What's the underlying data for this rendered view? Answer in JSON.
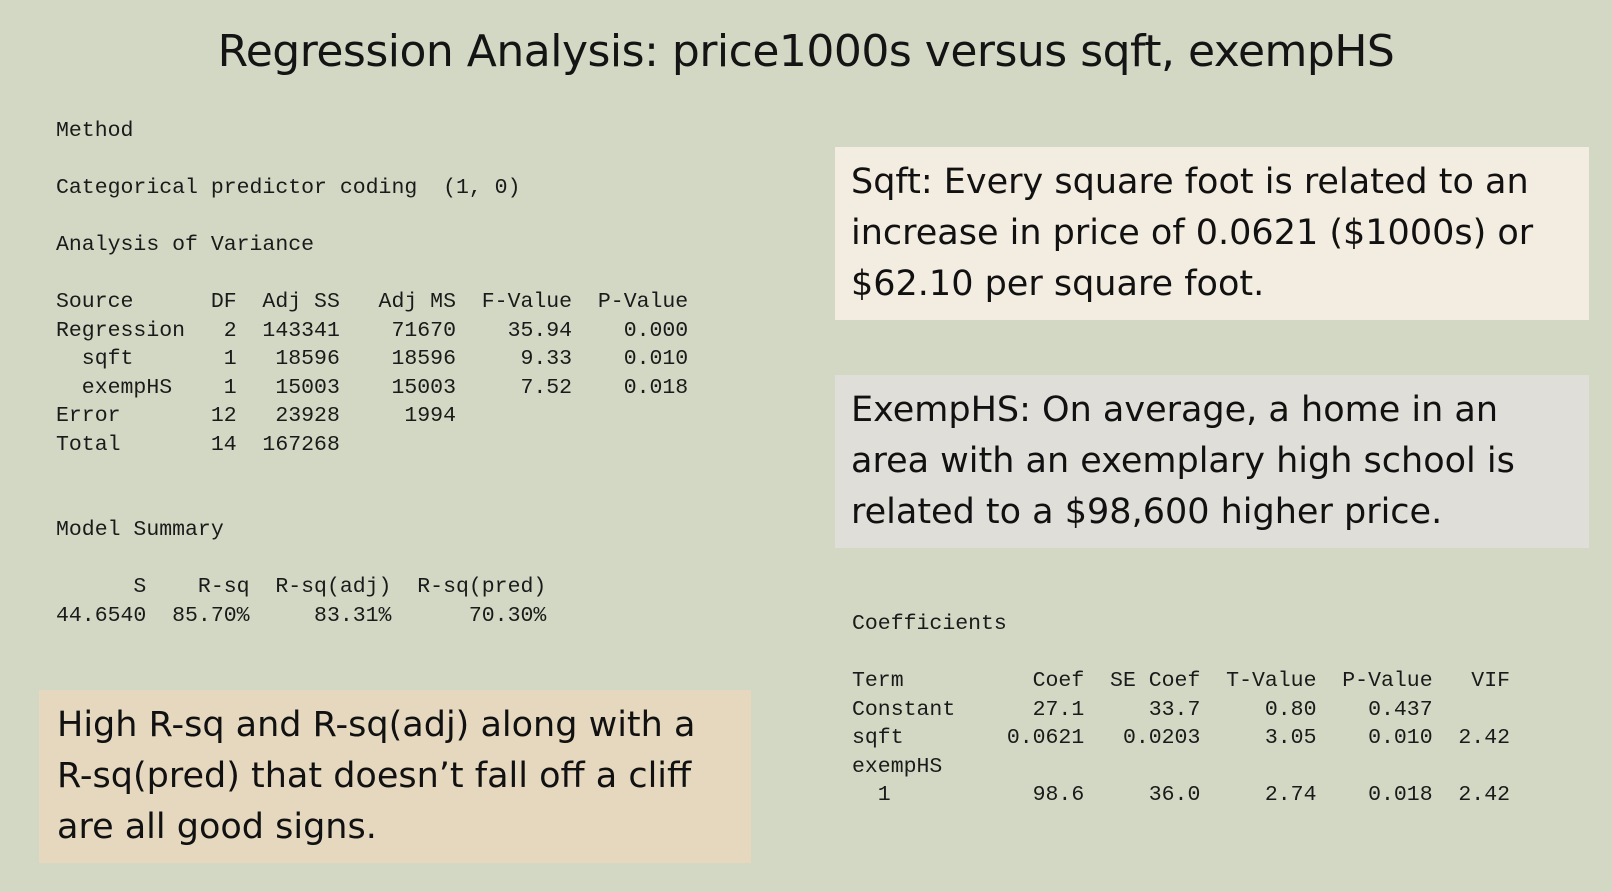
{
  "title": "Regression Analysis: price1000s versus sqft, exempHS",
  "method": {
    "heading": "Method",
    "line": "Categorical predictor coding  (1, 0)"
  },
  "anova": {
    "heading": "Analysis of Variance",
    "table": [
      "Source      DF  Adj SS   Adj MS  F-Value  P-Value",
      "Regression   2  143341    71670    35.94    0.000",
      "  sqft       1   18596    18596     9.33    0.010",
      "  exempHS    1   15003    15003     7.52    0.018",
      "Error       12   23928     1994",
      "Total       14  167268"
    ]
  },
  "model_summary": {
    "heading": "Model Summary",
    "table": [
      "      S    R-sq  R-sq(adj)  R-sq(pred)",
      "44.6540  85.70%     83.31%      70.30%"
    ]
  },
  "coefficients": {
    "heading": "Coefficients",
    "table": [
      "Term          Coef  SE Coef  T-Value  P-Value   VIF",
      "Constant      27.1     33.7     0.80    0.437",
      "sqft        0.0621   0.0203     3.05    0.010  2.42",
      "exempHS",
      "  1           98.6     36.0     2.74    0.018  2.42"
    ]
  },
  "callouts": {
    "sqft": "Sqft: Every square foot is related to an increase in price of 0.0621 ($1000s) or $62.10 per square foot.",
    "exemp": "ExempHS: On average, a home in an area with an exemplary high school is related to a $98,600 higher price.",
    "rsq": "High R-sq and R-sq(adj) along with a R-sq(pred) that doesn’t fall off a cliff are all good signs."
  },
  "colors": {
    "background": "#d2d8c4",
    "callout_sqft": "#f3ece0",
    "callout_exemp": "#e0ded8",
    "callout_rsq": "#e5d8bf"
  }
}
